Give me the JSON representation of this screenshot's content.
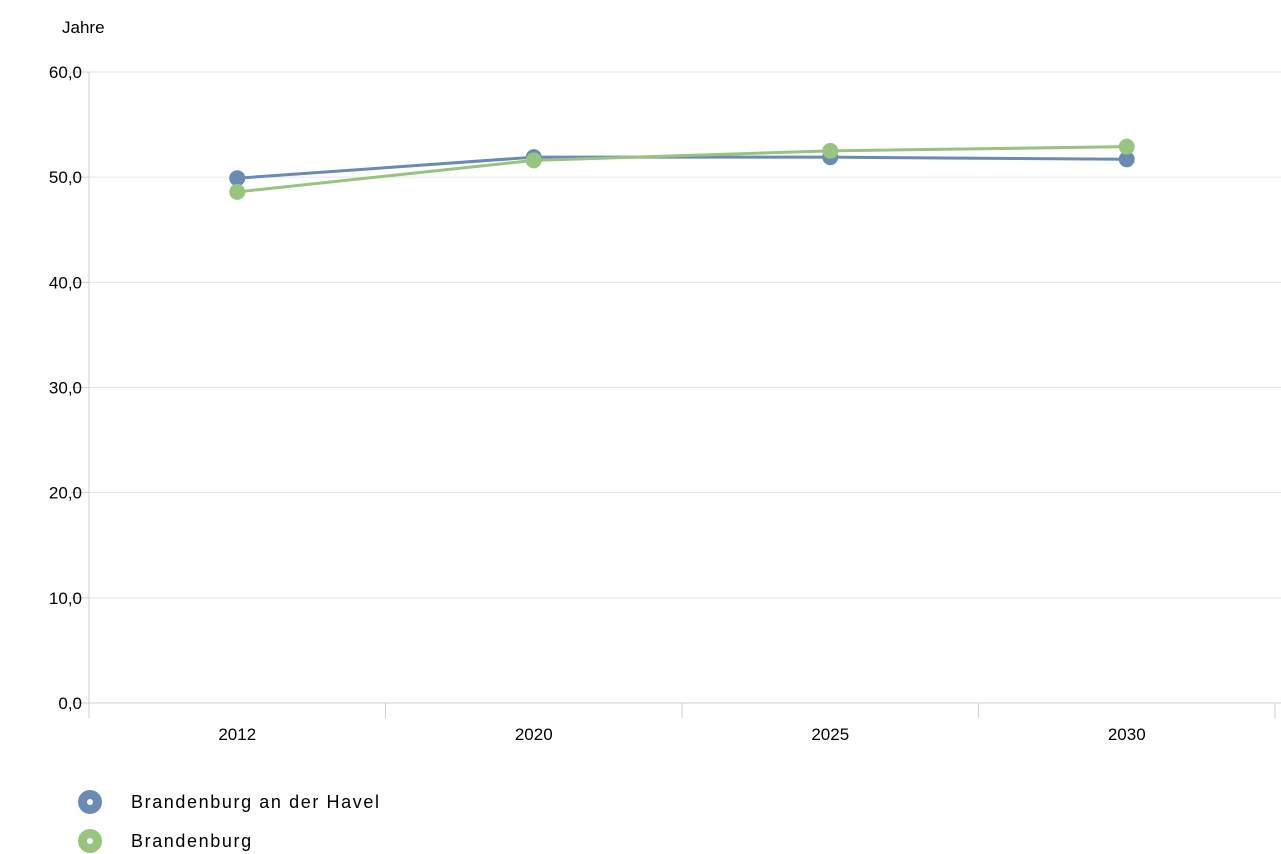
{
  "chart_data": {
    "type": "line",
    "ylabel": "Jahre",
    "categories": [
      "2012",
      "2020",
      "2025",
      "2030"
    ],
    "ylim": [
      0,
      60
    ],
    "yticks": [
      "0,0",
      "10,0",
      "20,0",
      "30,0",
      "40,0",
      "50,0",
      "60,0"
    ],
    "grid": "horizontal",
    "legend_position": "bottom-left",
    "series": [
      {
        "name": "Brandenburg an der Havel",
        "color": "#6a8bb3",
        "values": [
          49.9,
          51.9,
          51.9,
          51.7
        ]
      },
      {
        "name": "Brandenburg",
        "color": "#97c47e",
        "values": [
          48.6,
          51.6,
          52.5,
          52.9
        ]
      }
    ]
  }
}
